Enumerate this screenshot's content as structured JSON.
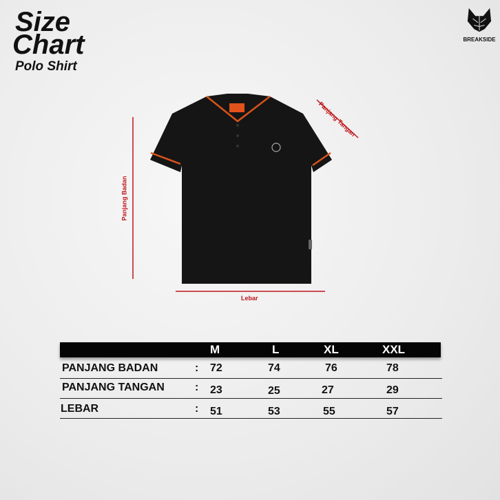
{
  "title": {
    "line1": "Size",
    "line2": "Chart",
    "subtitle": "Polo Shirt"
  },
  "brand": {
    "name": "BREAKSIDE",
    "icon": "cat-head-logo-icon"
  },
  "measurements": {
    "body_length": "Panjang Badan",
    "sleeve_length": "Panjang Tangan",
    "width": "Lebar"
  },
  "colors": {
    "measure_line": "#c0141a",
    "shirt": "#151515",
    "trim": "#d8541b",
    "header_bar": "#050505"
  },
  "table": {
    "sizes": [
      "M",
      "L",
      "XL",
      "XXL"
    ],
    "separator": ":",
    "rows": [
      {
        "label": "PANJANG BADAN",
        "values": [
          "72",
          "74",
          "76",
          "78"
        ]
      },
      {
        "label": "PANJANG TANGAN",
        "values": [
          "23",
          "25",
          "27",
          "29"
        ]
      },
      {
        "label": "LEBAR",
        "values": [
          "51",
          "53",
          "55",
          "57"
        ]
      }
    ]
  }
}
